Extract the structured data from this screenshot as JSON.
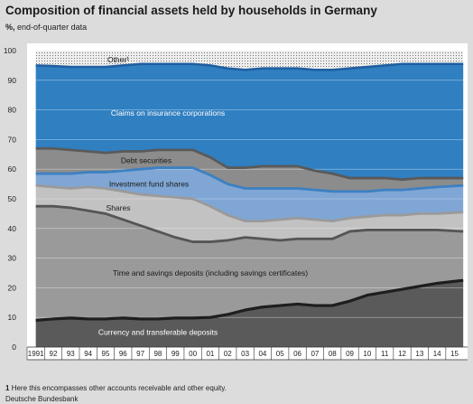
{
  "header": {
    "title": "Composition of financial assets held by households in Germany",
    "unit": "%,",
    "subtitle": "end-of-quarter data"
  },
  "footer": {
    "footnote_marker": "1",
    "footnote_text": "Here this encompasses other accounts receivable and other equity.",
    "source": "Deutsche Bundesbank"
  },
  "chart_data": {
    "type": "area",
    "stacked": true,
    "x": [
      1991,
      1992,
      1993,
      1994,
      1995,
      1996,
      1997,
      1998,
      1999,
      2000,
      2001,
      2002,
      2003,
      2004,
      2005,
      2006,
      2007,
      2008,
      2009,
      2010,
      2011,
      2012,
      2013,
      2014,
      2015.5
    ],
    "x_tick_labels": [
      "1991",
      "92",
      "93",
      "94",
      "95",
      "96",
      "97",
      "98",
      "99",
      "00",
      "01",
      "02",
      "03",
      "04",
      "05",
      "06",
      "07",
      "08",
      "09",
      "10",
      "11",
      "12",
      "13",
      "14",
      "15"
    ],
    "ylim": [
      0,
      100
    ],
    "y_ticks": [
      "0",
      "10",
      "20",
      "30",
      "40",
      "50",
      "60",
      "70",
      "80",
      "90",
      "100"
    ],
    "grid": true,
    "series": [
      {
        "name": "Currency and transferable deposits",
        "color": "#5a5a5a",
        "cumulative": [
          9,
          9.5,
          9.8,
          9.5,
          9.5,
          9.8,
          9.5,
          9.5,
          9.8,
          9.8,
          10,
          11,
          12.5,
          13.5,
          14,
          14.5,
          14,
          14,
          15.5,
          17.5,
          18.5,
          19.5,
          20.5,
          21.5,
          22.5
        ]
      },
      {
        "name": "Time and savings deposits (including savings certificates)",
        "color": "#9a9a9a",
        "cumulative": [
          47.5,
          47.5,
          47,
          46,
          45,
          43,
          41,
          39,
          37,
          35.5,
          35.5,
          36,
          37,
          36.5,
          36,
          36.5,
          36.5,
          36.5,
          39,
          39.5,
          39.5,
          39.5,
          39.5,
          39.5,
          39
        ]
      },
      {
        "name": "Shares",
        "color": "#c2c2c2",
        "cumulative": [
          54.5,
          54,
          53.5,
          54,
          53.5,
          52.5,
          51.5,
          51,
          50.5,
          50,
          47.5,
          44.5,
          42.5,
          42.5,
          43,
          43.5,
          43,
          42.5,
          43.5,
          44,
          44.5,
          44.5,
          45,
          45,
          45.5
        ]
      },
      {
        "name": "Investment fund shares",
        "color": "#7fa6d4",
        "cumulative": [
          58.5,
          58.5,
          58.5,
          59,
          59,
          59.5,
          60,
          60.5,
          60.5,
          60.5,
          58,
          55,
          53.5,
          53.5,
          53.5,
          53.5,
          53,
          52.5,
          52.5,
          52.5,
          53,
          53,
          53.5,
          54,
          54.5
        ]
      },
      {
        "name": "Debt securities",
        "color": "#8c8c8c",
        "cumulative": [
          67,
          67,
          66.5,
          66,
          65.5,
          66,
          66,
          66.5,
          66.5,
          66.5,
          64,
          60.5,
          60.5,
          61,
          61,
          61,
          59.5,
          58.5,
          57,
          57,
          57,
          56.5,
          57,
          57,
          57
        ]
      },
      {
        "name": "Claims on insurance corporations",
        "color": "#2f7fc1",
        "cumulative": [
          95,
          94.8,
          94.5,
          94.5,
          94.5,
          95,
          95.5,
          95.5,
          95.5,
          95.5,
          95,
          94,
          93.5,
          94,
          94,
          94,
          93.5,
          93.5,
          94,
          94.5,
          95,
          95.5,
          95.5,
          95.5,
          95.5
        ]
      },
      {
        "name": "Other¹",
        "color": "#e4e4e4",
        "cumulative": [
          100,
          100,
          100,
          100,
          100,
          100,
          100,
          100,
          100,
          100,
          100,
          100,
          100,
          100,
          100,
          100,
          100,
          100,
          100,
          100,
          100,
          100,
          100,
          100,
          100
        ]
      }
    ]
  }
}
